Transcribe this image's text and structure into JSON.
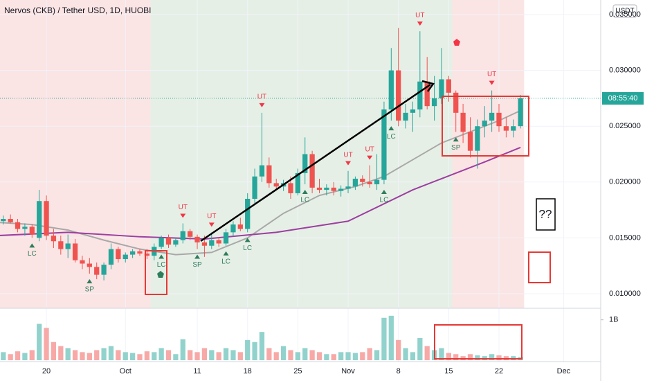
{
  "chart_data": {
    "type": "candlestick",
    "title": "Nervos (CKB) / Tether USD, 1D, HUOBI",
    "currency": "USDT",
    "countdown": "08:55:40",
    "note": "??",
    "up_color": "#26a69a",
    "down_color": "#ef5350",
    "up_volume_color": "#92d2cc",
    "down_volume_color": "#f7a9a7",
    "open": [
      0.0168,
      0.0165,
      0.0167,
      0.0164,
      0.0158,
      0.016,
      0.015,
      0.0183,
      0.0152,
      0.0147,
      0.014,
      0.0145,
      0.013,
      0.0127,
      0.0124,
      0.0117,
      0.0126,
      0.014,
      0.0131,
      0.0135,
      0.0138,
      0.0136,
      0.0134,
      0.0142,
      0.015,
      0.0144,
      0.0148,
      0.0156,
      0.0151,
      0.0146,
      0.0143,
      0.0148,
      0.0145,
      0.0155,
      0.0162,
      0.0158,
      0.0185,
      0.0205,
      0.0215,
      0.0199,
      0.0196,
      0.0199,
      0.019,
      0.0208,
      0.0225,
      0.0195,
      0.0193,
      0.0195,
      0.0192,
      0.0194,
      0.0196,
      0.0203,
      0.02,
      0.0198,
      0.0202,
      0.0265,
      0.03,
      0.0255,
      0.0262,
      0.0265,
      0.029,
      0.0268,
      0.0275,
      0.0292,
      0.028,
      0.0262,
      0.0245,
      0.0228,
      0.025,
      0.0255,
      0.0262,
      0.025,
      0.0246,
      0.025
    ],
    "high": [
      0.0172,
      0.017,
      0.0171,
      0.0167,
      0.0163,
      0.0162,
      0.0193,
      0.0188,
      0.0158,
      0.0152,
      0.0153,
      0.0149,
      0.0134,
      0.0132,
      0.0128,
      0.0128,
      0.0145,
      0.0142,
      0.0137,
      0.014,
      0.014,
      0.014,
      0.0145,
      0.0152,
      0.0153,
      0.015,
      0.0163,
      0.0158,
      0.0153,
      0.0152,
      0.0155,
      0.015,
      0.0158,
      0.0165,
      0.0168,
      0.019,
      0.0212,
      0.0262,
      0.0222,
      0.0203,
      0.0202,
      0.0205,
      0.0212,
      0.024,
      0.0228,
      0.0203,
      0.0198,
      0.02,
      0.0197,
      0.021,
      0.0205,
      0.0206,
      0.0215,
      0.0225,
      0.0272,
      0.032,
      0.0338,
      0.027,
      0.0272,
      0.0335,
      0.0312,
      0.0295,
      0.032,
      0.0295,
      0.0282,
      0.027,
      0.0258,
      0.0256,
      0.0268,
      0.0282,
      0.027,
      0.0258,
      0.0256,
      0.0278
    ],
    "low": [
      0.0163,
      0.0162,
      0.0163,
      0.0155,
      0.0152,
      0.015,
      0.0147,
      0.0148,
      0.0141,
      0.0135,
      0.0132,
      0.0128,
      0.0122,
      0.0118,
      0.0113,
      0.0112,
      0.0122,
      0.0128,
      0.0128,
      0.0132,
      0.0134,
      0.0131,
      0.013,
      0.014,
      0.0141,
      0.0142,
      0.0145,
      0.0148,
      0.014,
      0.0133,
      0.014,
      0.0142,
      0.0143,
      0.0152,
      0.0156,
      0.0155,
      0.018,
      0.02,
      0.0195,
      0.0193,
      0.0192,
      0.0185,
      0.0188,
      0.0198,
      0.019,
      0.019,
      0.0188,
      0.0188,
      0.0187,
      0.019,
      0.0193,
      0.0196,
      0.0195,
      0.0193,
      0.0198,
      0.0255,
      0.025,
      0.0248,
      0.0245,
      0.0258,
      0.0265,
      0.0255,
      0.027,
      0.0272,
      0.0245,
      0.0235,
      0.0222,
      0.0212,
      0.024,
      0.0245,
      0.0245,
      0.024,
      0.024,
      0.0248
    ],
    "close": [
      0.0165,
      0.0167,
      0.0164,
      0.0158,
      0.016,
      0.0153,
      0.0183,
      0.0152,
      0.0147,
      0.014,
      0.0145,
      0.013,
      0.0127,
      0.0124,
      0.0117,
      0.0126,
      0.014,
      0.0131,
      0.0135,
      0.0138,
      0.0136,
      0.0134,
      0.0142,
      0.015,
      0.0144,
      0.0148,
      0.0156,
      0.0151,
      0.0146,
      0.0143,
      0.0148,
      0.0145,
      0.0155,
      0.0162,
      0.0158,
      0.0185,
      0.0205,
      0.0215,
      0.0199,
      0.0196,
      0.0199,
      0.019,
      0.0208,
      0.0225,
      0.0195,
      0.0193,
      0.0195,
      0.0192,
      0.0194,
      0.0196,
      0.0203,
      0.02,
      0.0198,
      0.0202,
      0.0265,
      0.03,
      0.0255,
      0.0262,
      0.0265,
      0.029,
      0.0268,
      0.0275,
      0.0292,
      0.028,
      0.0262,
      0.0245,
      0.0228,
      0.025,
      0.0255,
      0.0262,
      0.025,
      0.0246,
      0.025,
      0.0275
    ],
    "volume": [
      180000000,
      200000000,
      150000000,
      220000000,
      180000000,
      250000000,
      900000000,
      800000000,
      450000000,
      350000000,
      300000000,
      250000000,
      200000000,
      180000000,
      250000000,
      300000000,
      350000000,
      250000000,
      200000000,
      180000000,
      150000000,
      220000000,
      200000000,
      300000000,
      250000000,
      150000000,
      520000000,
      250000000,
      200000000,
      300000000,
      250000000,
      200000000,
      300000000,
      250000000,
      200000000,
      500000000,
      450000000,
      700000000,
      300000000,
      200000000,
      350000000,
      250000000,
      200000000,
      300000000,
      250000000,
      200000000,
      150000000,
      150000000,
      200000000,
      200000000,
      180000000,
      200000000,
      300000000,
      250000000,
      1050000000,
      1100000000,
      500000000,
      300000000,
      200000000,
      550000000,
      350000000,
      250000000,
      300000000,
      180000000,
      150000000,
      100000000,
      150000000,
      120000000,
      100000000,
      150000000,
      120000000,
      100000000,
      100000000,
      80000000
    ],
    "ylim": [
      0.0087,
      0.0363
    ],
    "yticks": [
      {
        "value": 0.01,
        "label": "0.010000"
      },
      {
        "value": 0.015,
        "label": "0.015000"
      },
      {
        "value": 0.02,
        "label": "0.020000"
      },
      {
        "value": 0.025,
        "label": "0.025000"
      },
      {
        "value": 0.03,
        "label": "0.030000"
      },
      {
        "value": 0.035,
        "label": "0.035000"
      }
    ],
    "volume_ylim": [
      0,
      1200000000
    ],
    "volume_yticks": [
      {
        "value": 1000000000,
        "label": "1B"
      }
    ],
    "xticks": [
      {
        "value": 7,
        "label": "20"
      },
      {
        "value": 18,
        "label": "Oct"
      },
      {
        "value": 28,
        "label": "11"
      },
      {
        "value": 35,
        "label": "18"
      },
      {
        "value": 42,
        "label": "25"
      },
      {
        "value": 49,
        "label": "Nov"
      },
      {
        "value": 56,
        "label": "8"
      },
      {
        "value": 63,
        "label": "15"
      },
      {
        "value": 70,
        "label": "22"
      },
      {
        "value": 79,
        "label": "Dec"
      }
    ],
    "overlays": [
      {
        "color": "#a8a8a8",
        "x": [
          0,
          5,
          10,
          15,
          20,
          25,
          30,
          35,
          40,
          45,
          50,
          54,
          58,
          62,
          66,
          70,
          73
        ],
        "values": [
          0.0164,
          0.0162,
          0.0157,
          0.0148,
          0.014,
          0.0135,
          0.0137,
          0.015,
          0.0172,
          0.0188,
          0.0196,
          0.0205,
          0.022,
          0.0235,
          0.0245,
          0.0255,
          0.0264
        ]
      },
      {
        "color": "#9c3fa0",
        "x": [
          0,
          10,
          20,
          29,
          39,
          49,
          58,
          68,
          73
        ],
        "values": [
          0.0152,
          0.0155,
          0.0151,
          0.0149,
          0.0155,
          0.0165,
          0.0193,
          0.0218,
          0.0231
        ]
      }
    ],
    "zones": [
      {
        "from": 0,
        "to": 21,
        "color": "#fbe4e4"
      },
      {
        "from": 22,
        "to": 63,
        "color": "#e6efe6"
      },
      {
        "from": 64,
        "to": 73,
        "color": "#fbe4e4"
      }
    ],
    "annotations": [
      {
        "index": 5,
        "text": "LC",
        "side": "below",
        "color": "#2e7d5b"
      },
      {
        "index": 13,
        "text": "SP",
        "side": "below",
        "color": "#2e7d5b"
      },
      {
        "index": 23,
        "text": "LC",
        "side": "below",
        "color": "#2e7d5b"
      },
      {
        "index": 26,
        "text": "UT",
        "side": "above",
        "color": "#f23645"
      },
      {
        "index": 28,
        "text": "SP",
        "side": "below",
        "color": "#2e7d5b"
      },
      {
        "index": 30,
        "text": "UT",
        "side": "above",
        "color": "#f23645"
      },
      {
        "index": 32,
        "text": "LC",
        "side": "below",
        "color": "#2e7d5b"
      },
      {
        "index": 35,
        "text": "LC",
        "side": "below",
        "color": "#2e7d5b"
      },
      {
        "index": 37,
        "text": "UT",
        "side": "above",
        "color": "#f23645"
      },
      {
        "index": 43,
        "text": "LC",
        "side": "below",
        "color": "#2e7d5b"
      },
      {
        "index": 49,
        "text": "UT",
        "side": "above",
        "color": "#f23645"
      },
      {
        "index": 52,
        "text": "UT",
        "side": "above",
        "color": "#f23645"
      },
      {
        "index": 54,
        "text": "LC",
        "side": "below",
        "color": "#2e7d5b"
      },
      {
        "index": 55,
        "text": "LC",
        "side": "below",
        "color": "#2e7d5b"
      },
      {
        "index": 59,
        "text": "UT",
        "side": "above",
        "color": "#f23645"
      },
      {
        "index": 64,
        "text": "SP",
        "side": "below",
        "color": "#2e7d5b"
      },
      {
        "index": 69,
        "text": "UT",
        "side": "above",
        "color": "#f23645"
      }
    ]
  }
}
